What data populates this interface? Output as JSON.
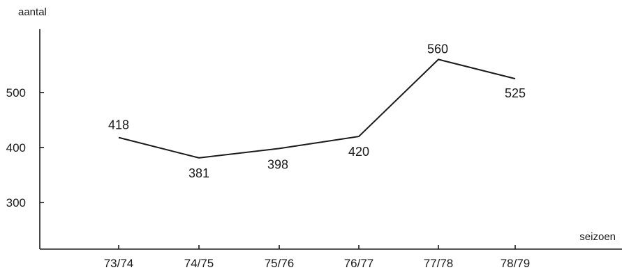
{
  "chart_data": {
    "type": "line",
    "title": "",
    "ylabel": "aantal",
    "xlabel": "seizoen",
    "categories": [
      "73/74",
      "74/75",
      "75/76",
      "76/77",
      "77/78",
      "78/79"
    ],
    "y_ticks": [
      300,
      400,
      500
    ],
    "ylim": [
      215,
      615
    ],
    "grid": false,
    "series": [
      {
        "values": [
          418,
          381,
          398,
          420,
          560,
          525
        ],
        "labels": [
          "418",
          "381",
          "398",
          "420",
          "560",
          "525"
        ]
      }
    ]
  }
}
